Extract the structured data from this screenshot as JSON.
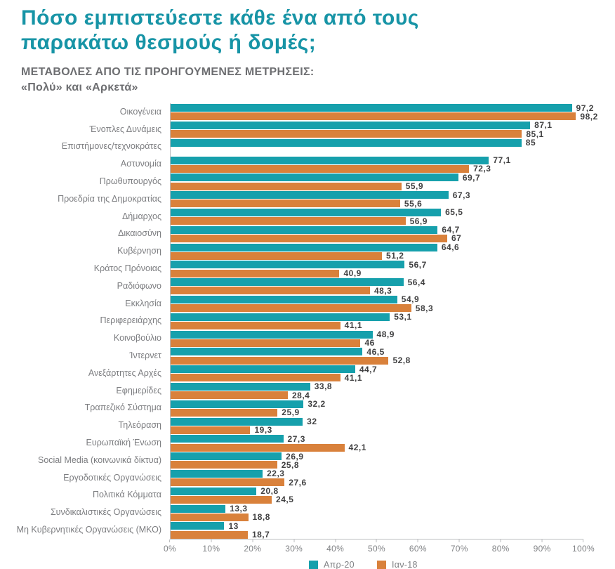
{
  "header": {
    "title_line1": "Πόσο εμπιστεύεστε κάθε ένα από τους",
    "title_line2": "παρακάτω θεσμούς ή δομές;",
    "subtitle_line1": "ΜΕΤΑΒΟΛΕΣ ΑΠΟ ΤΙΣ ΠΡΟΗΓΟΥΜΕΝΕΣ ΜΕΤΡΗΣΕΙΣ:",
    "subtitle_line2": "«Πολύ» και «Αρκετά»"
  },
  "colors": {
    "title_teal": "#1794A6",
    "bar_teal": "#16A0AC",
    "bar_orange": "#D9813B",
    "subtitle_gray": "#6D6E71",
    "category_gray": "#7C7D80",
    "value_dark": "#404041",
    "axis_gray": "#BCBEC0",
    "tick_text_gray": "#808285"
  },
  "chart_data": {
    "type": "bar",
    "orientation": "horizontal",
    "title": "Πόσο εμπιστεύεστε κάθε ένα από τους παρακάτω θεσμούς ή δομές;",
    "subtitle": "ΜΕΤΑΒΟΛΕΣ ΑΠΟ ΤΙΣ ΠΡΟΗΓΟΥΜΕΝΕΣ ΜΕΤΡΗΣΕΙΣ: «Πολύ» και «Αρκετά»",
    "xlim": [
      0,
      100
    ],
    "x_ticks": [
      "0%",
      "10%",
      "20%",
      "30%",
      "40%",
      "50%",
      "60%",
      "70%",
      "80%",
      "90%",
      "100%"
    ],
    "grid": false,
    "legend_position": "bottom",
    "decimal_separator": ",",
    "categories": [
      "Οικογένεια",
      "Ένοπλες Δυνάμεις",
      "Επιστήμονες/τεχνοκράτες",
      "Αστυνομία",
      "Πρωθυπουργός",
      "Προεδρία της Δημοκρατίας",
      "Δήμαρχος",
      "Δικαιοσύνη",
      "Κυβέρνηση",
      "Κράτος Πρόνοιας",
      "Ραδιόφωνο",
      "Εκκλησία",
      "Περιφερειάρχης",
      "Κοινοβούλιο",
      "Ίντερνετ",
      "Ανεξάρτητες Αρχές",
      "Εφημερίδες",
      "Τραπεζικό Σύστημα",
      "Τηλεόραση",
      "Ευρωπαϊκή Ένωση",
      "Social Media (κοινωνικά δίκτυα)",
      "Εργοδοτικές Οργανώσεις",
      "Πολιτικά Κόμματα",
      "Συνδικαλιστικές Οργανώσεις",
      "Μη Κυβερνητικές Οργανώσεις (ΜΚΟ)"
    ],
    "series": [
      {
        "id": "apr20",
        "name": "Απρ-20",
        "color": "#16A0AC",
        "values": [
          97.2,
          87.1,
          85,
          77.1,
          69.7,
          67.3,
          65.5,
          64.7,
          64.6,
          56.7,
          56.4,
          54.9,
          53.1,
          48.9,
          46.5,
          44.7,
          33.8,
          32.2,
          32,
          27.3,
          26.9,
          22.3,
          20.8,
          13.3,
          13
        ]
      },
      {
        "id": "jan18",
        "name": "Ιαν-18",
        "color": "#D9813B",
        "values": [
          98.2,
          85.1,
          null,
          72.3,
          55.9,
          55.6,
          56.9,
          67,
          51.2,
          40.9,
          48.3,
          58.3,
          41.1,
          46,
          52.8,
          41.1,
          28.4,
          25.9,
          19.3,
          42.1,
          25.8,
          27.6,
          24.5,
          18.8,
          18.7
        ]
      }
    ]
  }
}
